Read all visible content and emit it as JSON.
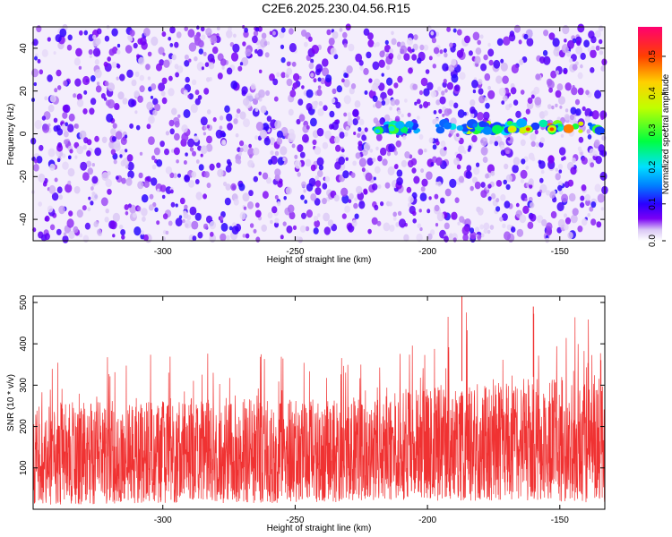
{
  "title": "C2E6.2025.230.04.56.R15",
  "chart_data": [
    {
      "type": "heatmap",
      "xlabel": "Height of straight line (km)",
      "ylabel": "Frequency (Hz)",
      "xlim": [
        -349,
        -133
      ],
      "ylim": [
        -50,
        50
      ],
      "xticks": [
        -300,
        -250,
        -200,
        -150
      ],
      "yticks": [
        -40,
        -20,
        0,
        20,
        40
      ],
      "colorbar": {
        "label": "Normalized spectral amplitude",
        "range": [
          0.0,
          0.58
        ],
        "ticks": [
          0.0,
          0.1,
          0.2,
          0.3,
          0.4,
          0.5
        ],
        "stops": [
          {
            "v": 0.0,
            "color": "#ffffff"
          },
          {
            "v": 0.03,
            "color": "#d9c6f5"
          },
          {
            "v": 0.06,
            "color": "#7a00f5"
          },
          {
            "v": 0.1,
            "color": "#2a00ff"
          },
          {
            "v": 0.15,
            "color": "#0080ff"
          },
          {
            "v": 0.2,
            "color": "#00e0ff"
          },
          {
            "v": 0.27,
            "color": "#00ff40"
          },
          {
            "v": 0.36,
            "color": "#c0ff00"
          },
          {
            "v": 0.43,
            "color": "#ffd000"
          },
          {
            "v": 0.5,
            "color": "#ff4000"
          },
          {
            "v": 0.58,
            "color": "#ff0070"
          }
        ]
      },
      "signal_band": {
        "x_start": -221,
        "x_end": -133,
        "center_frequency_hz": 3
      }
    },
    {
      "type": "line",
      "xlabel": "Height of straight line (km)",
      "ylabel": "SNR (10 * v/v)",
      "xlim": [
        -349,
        -133
      ],
      "ylim": [
        0,
        515
      ],
      "xticks": [
        -300,
        -250,
        -200,
        -150
      ],
      "yticks": [
        100,
        200,
        300,
        400,
        500
      ],
      "color": "#f03232",
      "envelope": [
        {
          "x": -349,
          "min": 10,
          "typ": 250,
          "max": 360
        },
        {
          "x": -300,
          "min": 15,
          "typ": 270,
          "max": 400
        },
        {
          "x": -250,
          "min": 15,
          "typ": 265,
          "max": 390
        },
        {
          "x": -210,
          "min": 20,
          "typ": 285,
          "max": 410
        },
        {
          "x": -187,
          "min": 20,
          "typ": 310,
          "max": 515
        },
        {
          "x": -160,
          "min": 20,
          "typ": 320,
          "max": 490
        },
        {
          "x": -133,
          "min": 15,
          "typ": 320,
          "max": 470
        }
      ]
    }
  ]
}
